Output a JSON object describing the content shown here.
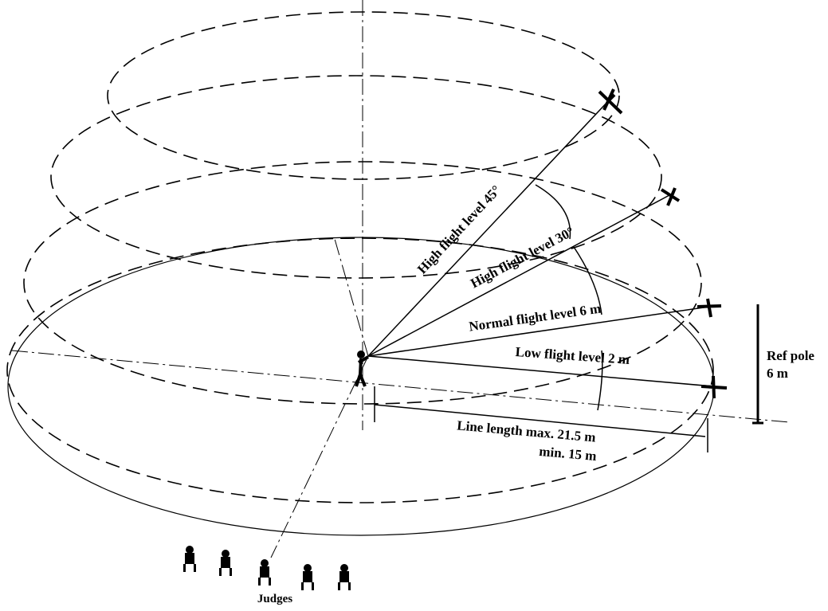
{
  "levels": [
    {
      "label": "High flight level 45°"
    },
    {
      "label": "High flight level 30°"
    },
    {
      "label": "Normal flight level 6 m"
    },
    {
      "label": "Low flight level 2 m"
    }
  ],
  "line_length": {
    "max": "Line length max. 21.5 m",
    "min": "min. 15 m"
  },
  "ref_pole": {
    "title": "Ref pole",
    "height": "6 m"
  },
  "judges": "Judges"
}
